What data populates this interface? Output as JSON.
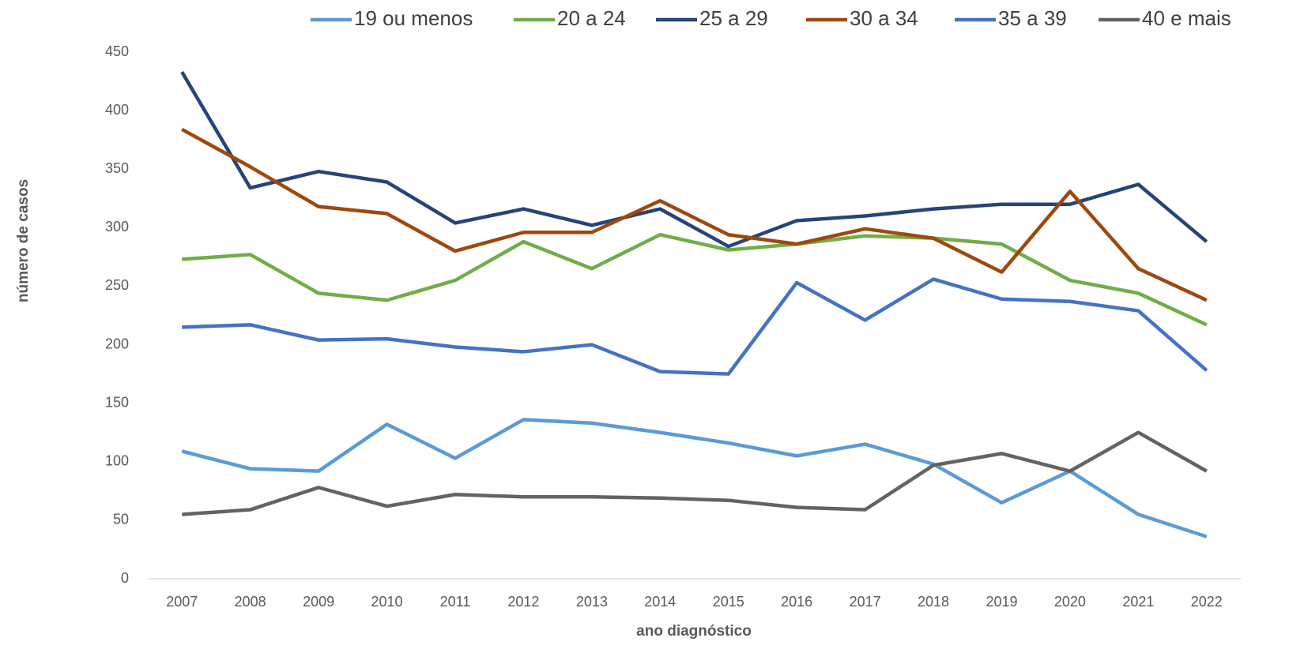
{
  "chart_data": {
    "type": "line",
    "xlabel": "ano diagnóstico",
    "ylabel": "número de casos",
    "categories": [
      "2007",
      "2008",
      "2009",
      "2010",
      "2011",
      "2012",
      "2013",
      "2014",
      "2015",
      "2016",
      "2017",
      "2018",
      "2019",
      "2020",
      "2021",
      "2022"
    ],
    "series": [
      {
        "name": "19 ou menos",
        "color": "#5b9bd5",
        "values": [
          109,
          94,
          92,
          132,
          103,
          136,
          133,
          125,
          116,
          105,
          115,
          98,
          65,
          92,
          55,
          36
        ]
      },
      {
        "name": "20 a 24",
        "color": "#70ad47",
        "values": [
          273,
          277,
          244,
          238,
          255,
          288,
          265,
          294,
          281,
          286,
          293,
          291,
          286,
          255,
          244,
          217
        ]
      },
      {
        "name": "25 a 29",
        "color": "#264478",
        "values": [
          433,
          334,
          348,
          339,
          304,
          316,
          302,
          316,
          284,
          306,
          310,
          316,
          320,
          320,
          337,
          288
        ]
      },
      {
        "name": "30 a 34",
        "color": "#9e480e",
        "values": [
          384,
          352,
          318,
          312,
          280,
          296,
          296,
          323,
          294,
          286,
          299,
          291,
          262,
          331,
          265,
          238
        ]
      },
      {
        "name": "35 a 39",
        "color": "#4472c4",
        "values": [
          215,
          217,
          204,
          205,
          198,
          194,
          200,
          177,
          175,
          253,
          221,
          256,
          239,
          237,
          229,
          178
        ]
      },
      {
        "name": "40 e mais",
        "color": "#636363",
        "values": [
          55,
          59,
          78,
          62,
          72,
          70,
          70,
          69,
          67,
          61,
          59,
          97,
          107,
          92,
          125,
          92
        ]
      }
    ],
    "ylim": [
      0,
      450
    ],
    "yticks": [
      0,
      50,
      100,
      150,
      200,
      250,
      300,
      350,
      400,
      450
    ],
    "grid": false,
    "legend": "top"
  }
}
